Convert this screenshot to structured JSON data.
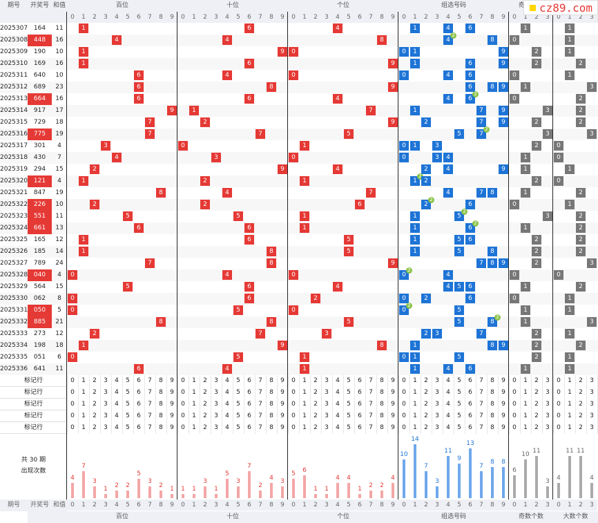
{
  "header": {
    "period": "期号",
    "draw": "开奖号",
    "sum": "和值",
    "hundreds": "百位",
    "tens": "十位",
    "units": "个位",
    "group": "组选号码",
    "oddcount": "奇数个数",
    "bigcount": "大数个数"
  },
  "logo_text": "cz89.com",
  "mark_label": "标记行",
  "stats_label_1": "共 30 期",
  "stats_label_2": "出现次数",
  "rows": [
    {
      "period": "2025307",
      "draw": "164",
      "sum": "11"
    },
    {
      "period": "2025308",
      "draw": "448",
      "sum": "16"
    },
    {
      "period": "2025309",
      "draw": "190",
      "sum": "10"
    },
    {
      "period": "2025310",
      "draw": "169",
      "sum": "16"
    },
    {
      "period": "2025311",
      "draw": "640",
      "sum": "10"
    },
    {
      "period": "2025312",
      "draw": "689",
      "sum": "23"
    },
    {
      "period": "2025313",
      "draw": "664",
      "sum": "16"
    },
    {
      "period": "2025314",
      "draw": "917",
      "sum": "17"
    },
    {
      "period": "2025315",
      "draw": "729",
      "sum": "18"
    },
    {
      "period": "2025316",
      "draw": "775",
      "sum": "19"
    },
    {
      "period": "2025317",
      "draw": "301",
      "sum": "4"
    },
    {
      "period": "2025318",
      "draw": "430",
      "sum": "7"
    },
    {
      "period": "2025319",
      "draw": "294",
      "sum": "15"
    },
    {
      "period": "2025320",
      "draw": "121",
      "sum": "4"
    },
    {
      "period": "2025321",
      "draw": "847",
      "sum": "19"
    },
    {
      "period": "2025322",
      "draw": "226",
      "sum": "10"
    },
    {
      "period": "2025323",
      "draw": "551",
      "sum": "11"
    },
    {
      "period": "2025324",
      "draw": "661",
      "sum": "13"
    },
    {
      "period": "2025325",
      "draw": "165",
      "sum": "12"
    },
    {
      "period": "2025326",
      "draw": "185",
      "sum": "14"
    },
    {
      "period": "2025327",
      "draw": "789",
      "sum": "24"
    },
    {
      "period": "2025328",
      "draw": "040",
      "sum": "4"
    },
    {
      "period": "2025329",
      "draw": "564",
      "sum": "15"
    },
    {
      "period": "2025330",
      "draw": "062",
      "sum": "8"
    },
    {
      "period": "2025331",
      "draw": "050",
      "sum": "5"
    },
    {
      "period": "2025332",
      "draw": "885",
      "sum": "21"
    },
    {
      "period": "2025333",
      "draw": "273",
      "sum": "12"
    },
    {
      "period": "2025334",
      "draw": "198",
      "sum": "18"
    },
    {
      "period": "2025335",
      "draw": "051",
      "sum": "6"
    },
    {
      "period": "2025336",
      "draw": "641",
      "sum": "11"
    }
  ],
  "counts": {
    "hundreds": [
      4,
      7,
      3,
      1,
      2,
      2,
      5,
      3,
      2,
      1
    ],
    "tens": [
      1,
      1,
      3,
      1,
      5,
      3,
      7,
      2,
      4,
      3
    ],
    "units": [
      5,
      6,
      1,
      1,
      4,
      4,
      1,
      2,
      2,
      4
    ],
    "group": [
      10,
      14,
      7,
      3,
      11,
      9,
      13,
      7,
      8,
      8
    ],
    "odd": [
      6,
      10,
      11,
      3
    ],
    "big": [
      4,
      11,
      11,
      4
    ]
  },
  "colors": {
    "red": "#e53935",
    "blue": "#1e74d6",
    "gray": "#777777",
    "repeat": "#8bc34a"
  }
}
